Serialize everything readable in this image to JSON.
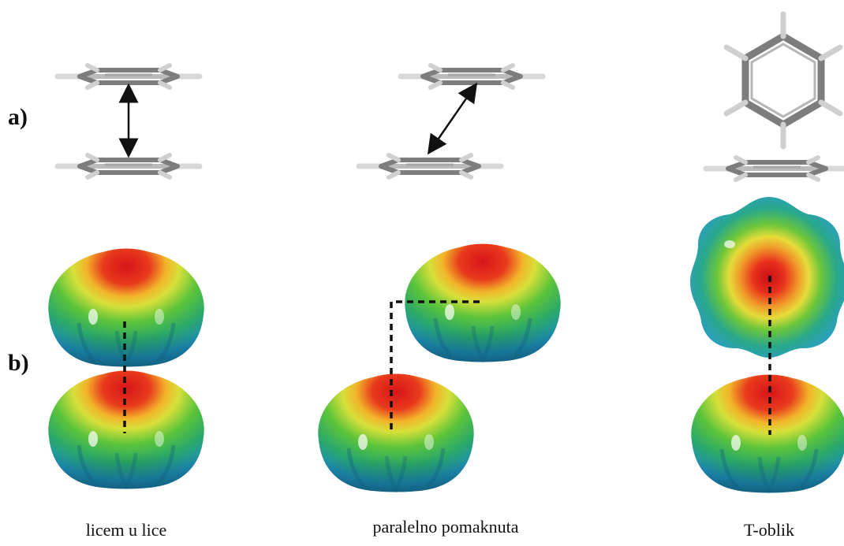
{
  "row_labels": {
    "a": "a)",
    "b": "b)"
  },
  "captions": {
    "face_to_face": "licem u lice",
    "parallel_displaced": "paralelno pomaknuta",
    "t_shaped": "T-oblik"
  },
  "colors": {
    "molecule_carbon": "#8a8a8a",
    "molecule_hydrogen": "#d0d0d0",
    "esp_negative": "#e02020",
    "esp_mid": "#7ccf3a",
    "esp_positive": "#1f8fc0",
    "dashed_line": "#111111"
  }
}
